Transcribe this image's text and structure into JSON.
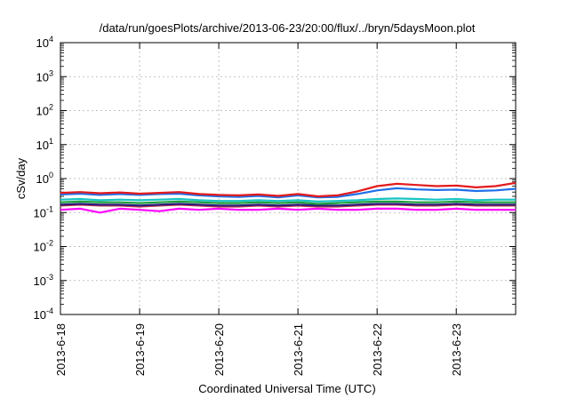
{
  "chart_data": {
    "type": "line",
    "title": "/data/run/goesPlots/archive/2013-06-23/20:00/flux/../bryn/5daysMoon.plot",
    "xlabel": "Coordinated Universal Time (UTC)",
    "ylabel": "cSv/day",
    "x_ticks": [
      "2013-6-18",
      "2013-6-19",
      "2013-6-20",
      "2013-6-21",
      "2013-6-22",
      "2013-6-23"
    ],
    "x_range_days": [
      0,
      5.75
    ],
    "yscale": "log",
    "ylim": [
      0.0001,
      10000
    ],
    "y_ticks": [
      {
        "base": "10",
        "exp": "-4"
      },
      {
        "base": "10",
        "exp": "-3"
      },
      {
        "base": "10",
        "exp": "-2"
      },
      {
        "base": "10",
        "exp": "-1"
      },
      {
        "base": "10",
        "exp": "0"
      },
      {
        "base": "10",
        "exp": "1"
      },
      {
        "base": "10",
        "exp": "2"
      },
      {
        "base": "10",
        "exp": "3"
      },
      {
        "base": "10",
        "exp": "4"
      }
    ],
    "grid": true,
    "legend": "none",
    "x": [
      0.0,
      0.25,
      0.5,
      0.75,
      1.0,
      1.25,
      1.5,
      1.75,
      2.0,
      2.25,
      2.5,
      2.75,
      3.0,
      3.25,
      3.5,
      3.75,
      4.0,
      4.25,
      4.5,
      4.75,
      5.0,
      5.25,
      5.5,
      5.75
    ],
    "series": [
      {
        "color": "#e31a1c",
        "values": [
          0.38,
          0.4,
          0.37,
          0.39,
          0.36,
          0.38,
          0.4,
          0.35,
          0.33,
          0.32,
          0.34,
          0.31,
          0.35,
          0.3,
          0.32,
          0.42,
          0.6,
          0.7,
          0.65,
          0.6,
          0.62,
          0.55,
          0.6,
          0.75
        ]
      },
      {
        "color": "#1f6fe8",
        "values": [
          0.34,
          0.36,
          0.33,
          0.35,
          0.33,
          0.35,
          0.36,
          0.32,
          0.3,
          0.29,
          0.31,
          0.28,
          0.32,
          0.28,
          0.29,
          0.35,
          0.45,
          0.52,
          0.48,
          0.46,
          0.47,
          0.43,
          0.45,
          0.5
        ]
      },
      {
        "color": "#18c3c3",
        "values": [
          0.24,
          0.25,
          0.23,
          0.24,
          0.23,
          0.24,
          0.25,
          0.23,
          0.22,
          0.22,
          0.23,
          0.22,
          0.23,
          0.21,
          0.22,
          0.23,
          0.25,
          0.26,
          0.25,
          0.24,
          0.25,
          0.23,
          0.24,
          0.24
        ]
      },
      {
        "color": "#1a9e3a",
        "values": [
          0.2,
          0.21,
          0.2,
          0.2,
          0.19,
          0.2,
          0.21,
          0.2,
          0.19,
          0.19,
          0.2,
          0.19,
          0.2,
          0.18,
          0.19,
          0.2,
          0.21,
          0.21,
          0.2,
          0.2,
          0.21,
          0.2,
          0.2,
          0.2
        ]
      },
      {
        "color": "#2a1a7a",
        "values": [
          0.17,
          0.18,
          0.17,
          0.17,
          0.16,
          0.17,
          0.18,
          0.17,
          0.16,
          0.16,
          0.17,
          0.16,
          0.17,
          0.16,
          0.16,
          0.17,
          0.18,
          0.18,
          0.17,
          0.17,
          0.18,
          0.17,
          0.17,
          0.17
        ]
      },
      {
        "color": "#c8324e",
        "values": [
          0.16,
          0.17,
          0.16,
          0.16,
          0.15,
          0.16,
          0.17,
          0.16,
          0.15,
          0.15,
          0.16,
          0.15,
          0.16,
          0.15,
          0.15,
          0.16,
          0.17,
          0.17,
          0.16,
          0.16,
          0.17,
          0.16,
          0.16,
          0.16
        ]
      },
      {
        "color": "#ff00ff",
        "values": [
          0.12,
          0.13,
          0.1,
          0.13,
          0.12,
          0.11,
          0.13,
          0.12,
          0.13,
          0.12,
          0.12,
          0.13,
          0.12,
          0.13,
          0.12,
          0.12,
          0.13,
          0.13,
          0.12,
          0.12,
          0.13,
          0.12,
          0.12,
          0.12
        ]
      }
    ]
  }
}
